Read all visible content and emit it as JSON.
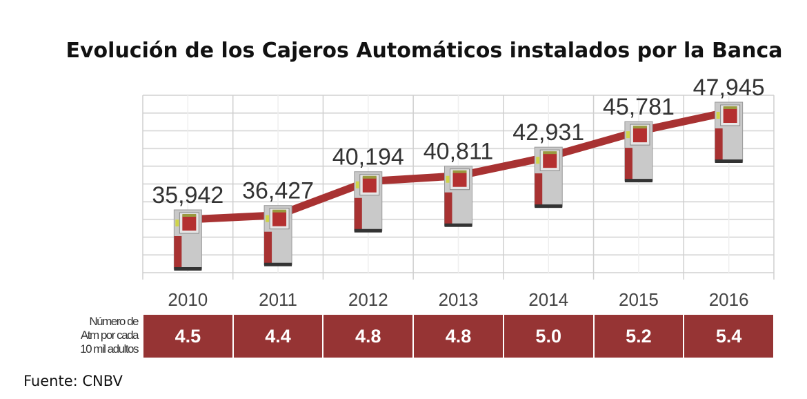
{
  "chart_data": {
    "type": "line",
    "title": "Evolución de los Cajeros Automáticos instalados por la Banca",
    "categories": [
      "2010",
      "2011",
      "2012",
      "2013",
      "2014",
      "2015",
      "2016"
    ],
    "values": [
      35942,
      36427,
      40194,
      40811,
      42931,
      45781,
      47945
    ],
    "value_labels": [
      "35,942",
      "36,427",
      "40,194",
      "40,811",
      "42,931",
      "45,781",
      "47,945"
    ],
    "marker": "atm-icon",
    "grid": true,
    "line_color": "#a83232",
    "table": {
      "row_label": [
        "Número de",
        "Atm por cada",
        "10 mil adultos"
      ],
      "values": [
        "4.5",
        "4.4",
        "4.8",
        "4.8",
        "5.0",
        "5.2",
        "5.4"
      ],
      "cell_color": "#963434"
    },
    "source": "Fuente: CNBV"
  }
}
